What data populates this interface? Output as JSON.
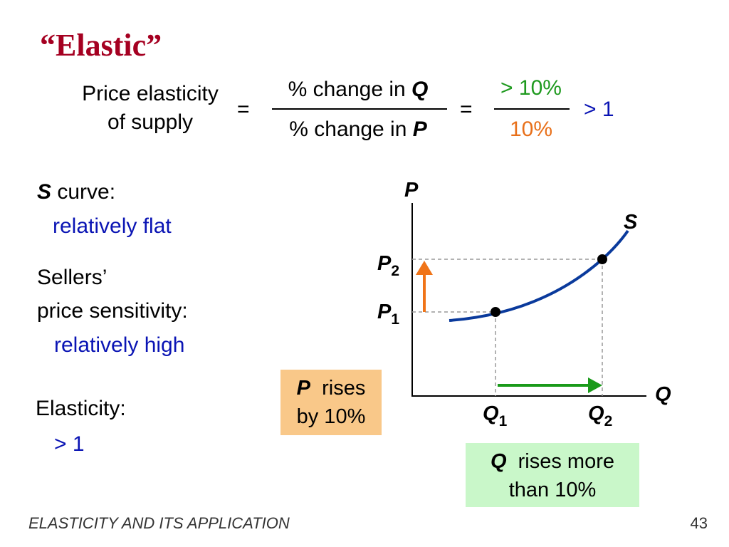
{
  "title": "“Elastic”",
  "formula": {
    "lhs_line1": "Price elasticity",
    "lhs_line2": "of supply",
    "eq1": "=",
    "num_text": "% change in ",
    "num_var": "Q",
    "den_text": "% change in ",
    "den_var": "P",
    "eq2": "=",
    "num2": "> 10%",
    "den2": "10%",
    "result": "> 1"
  },
  "left": {
    "s_var": "S",
    "s_label": " curve:",
    "s_value": "relatively flat",
    "sellers_line1": "Sellers’",
    "sellers_line2": "price sensitivity:",
    "sellers_value": "relatively high",
    "elasticity_label": "Elasticity:",
    "elasticity_value": "> 1"
  },
  "graph": {
    "axis_y": "P",
    "axis_x": "Q",
    "curve_label": "S",
    "p1": "P",
    "p1_sub": "1",
    "p2": "P",
    "p2_sub": "2",
    "q1": "Q",
    "q1_sub": "1",
    "q2": "Q",
    "q2_sub": "2",
    "colors": {
      "curve": "#0a3a9c",
      "p_arrow": "#f07418",
      "q_arrow": "#1a9a1a"
    }
  },
  "boxes": {
    "p_var": "P",
    "p_line1_rest": "  rises",
    "p_line2": "by 10%",
    "q_var": "Q",
    "q_line1_rest": "  rises more",
    "q_line2": "than 10%"
  },
  "footer": {
    "left": "ELASTICITY AND ITS APPLICATION",
    "page": "43"
  }
}
